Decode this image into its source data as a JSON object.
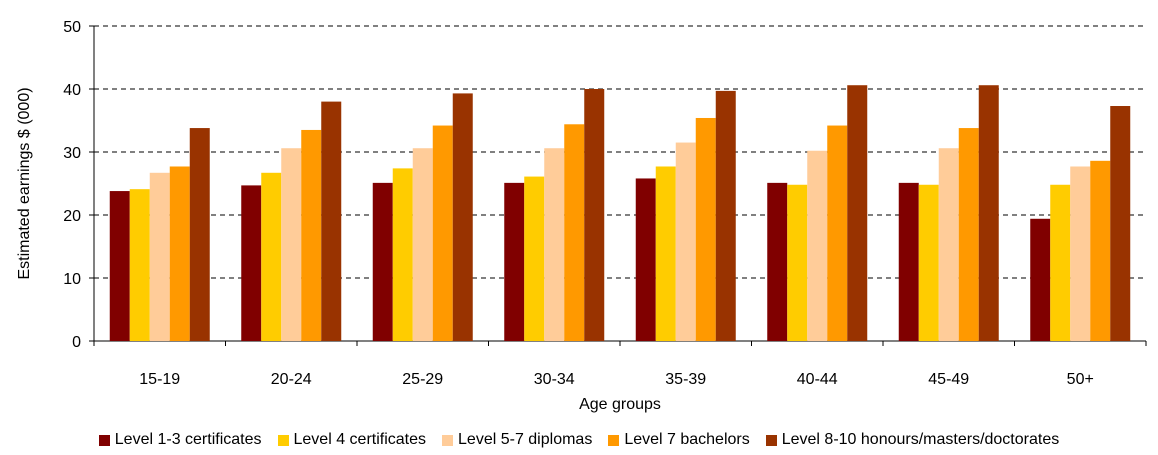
{
  "chart_data": {
    "type": "bar",
    "title": "",
    "xlabel": "Age groups",
    "ylabel": "Estimated earnings $ (000)",
    "ylim": [
      0,
      50
    ],
    "yticks": [
      0,
      10,
      20,
      30,
      40,
      50
    ],
    "grid": "horizontal dashed",
    "legend_position": "bottom",
    "categories": [
      "15-19",
      "20-24",
      "25-29",
      "30-34",
      "35-39",
      "40-44",
      "45-49",
      "50+"
    ],
    "series": [
      {
        "name": "Level 1-3 certificates",
        "color": "#800000",
        "values": [
          23.8,
          24.7,
          25.1,
          25.1,
          25.8,
          25.1,
          25.1,
          19.4
        ]
      },
      {
        "name": "Level 4 certificates",
        "color": "#FFCC00",
        "values": [
          24.1,
          26.7,
          27.4,
          26.1,
          27.7,
          24.8,
          24.8,
          24.8
        ]
      },
      {
        "name": "Level 5-7 diplomas",
        "color": "#FFCC99",
        "values": [
          26.7,
          30.6,
          30.6,
          30.6,
          31.5,
          30.2,
          30.6,
          27.7
        ]
      },
      {
        "name": "Level 7 bachelors",
        "color": "#FF9900",
        "values": [
          27.7,
          33.5,
          34.2,
          34.4,
          35.4,
          34.2,
          33.8,
          28.6
        ]
      },
      {
        "name": "Level 8-10 honours/masters/doctorates",
        "color": "#993300",
        "values": [
          33.8,
          38.0,
          39.3,
          40.0,
          39.7,
          40.6,
          40.6,
          37.3
        ]
      }
    ]
  }
}
